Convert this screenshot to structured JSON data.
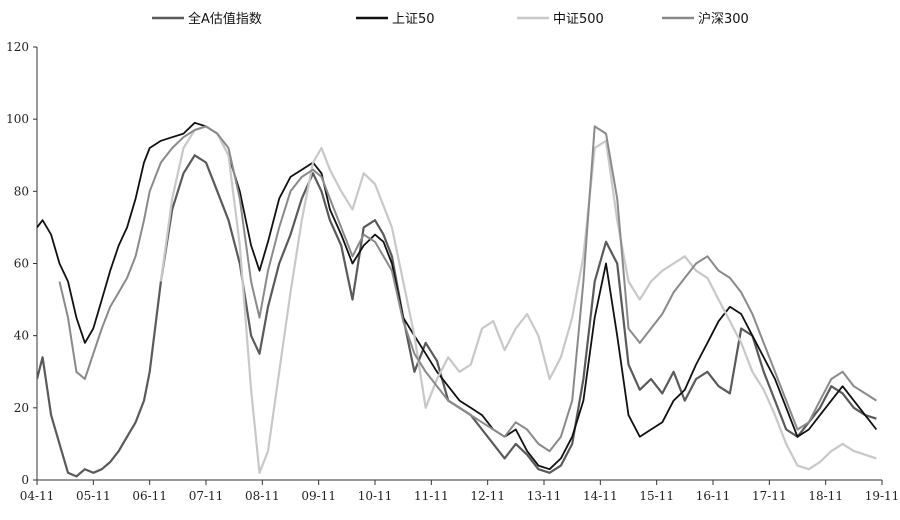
{
  "chart_data": {
    "type": "line",
    "title": "",
    "xlabel": "",
    "ylabel": "",
    "ylim": [
      0,
      120
    ],
    "yticks": [
      "0",
      "20",
      "40",
      "60",
      "80",
      "100",
      "120"
    ],
    "xticks": [
      "04-11",
      "05-11",
      "06-11",
      "07-11",
      "08-11",
      "09-11",
      "10-11",
      "11-11",
      "12-11",
      "13-11",
      "14-11",
      "15-11",
      "16-11",
      "17-11",
      "18-11",
      "19-11"
    ],
    "xlim": [
      0,
      15
    ],
    "grid": false,
    "legend_position": "top",
    "series": [
      {
        "name": "全A估值指数",
        "color": "#5a5a5a",
        "width": 2.2,
        "x": [
          0,
          0.1,
          0.25,
          0.4,
          0.55,
          0.7,
          0.85,
          1.0,
          1.15,
          1.3,
          1.45,
          1.6,
          1.75,
          1.9,
          2.0,
          2.2,
          2.4,
          2.6,
          2.8,
          3.0,
          3.2,
          3.4,
          3.6,
          3.8,
          3.95,
          4.1,
          4.3,
          4.5,
          4.7,
          4.9,
          5.05,
          5.2,
          5.4,
          5.6,
          5.8,
          6.0,
          6.15,
          6.3,
          6.5,
          6.7,
          6.9,
          7.1,
          7.3,
          7.5,
          7.7,
          7.9,
          8.1,
          8.3,
          8.5,
          8.7,
          8.9,
          9.1,
          9.3,
          9.5,
          9.7,
          9.9,
          10.1,
          10.3,
          10.5,
          10.7,
          10.9,
          11.1,
          11.3,
          11.5,
          11.7,
          11.9,
          12.1,
          12.3,
          12.5,
          12.7,
          12.9,
          13.1,
          13.3,
          13.5,
          13.7,
          13.9,
          14.1,
          14.3,
          14.5,
          14.7,
          14.9
        ],
        "y": [
          28,
          34,
          18,
          10,
          2,
          1,
          3,
          2,
          3,
          5,
          8,
          12,
          16,
          22,
          30,
          55,
          75,
          85,
          90,
          88,
          80,
          72,
          60,
          40,
          35,
          48,
          60,
          68,
          78,
          85,
          80,
          72,
          65,
          50,
          70,
          72,
          68,
          62,
          45,
          30,
          38,
          33,
          22,
          20,
          18,
          14,
          10,
          6,
          10,
          7,
          3,
          2,
          4,
          10,
          28,
          55,
          66,
          60,
          32,
          25,
          28,
          24,
          30,
          22,
          28,
          30,
          26,
          24,
          42,
          40,
          30,
          22,
          14,
          12,
          16,
          20,
          26,
          24,
          20,
          18,
          17
        ]
      },
      {
        "name": "上证50",
        "color": "#111111",
        "width": 1.8,
        "x": [
          0,
          0.1,
          0.25,
          0.4,
          0.55,
          0.7,
          0.85,
          1.0,
          1.15,
          1.3,
          1.45,
          1.6,
          1.75,
          1.9,
          2.0,
          2.2,
          2.4,
          2.6,
          2.8,
          3.0,
          3.2,
          3.4,
          3.6,
          3.8,
          3.95,
          4.1,
          4.3,
          4.5,
          4.7,
          4.9,
          5.05,
          5.2,
          5.4,
          5.6,
          5.8,
          6.0,
          6.15,
          6.3,
          6.5,
          6.7,
          6.9,
          7.1,
          7.3,
          7.5,
          7.7,
          7.9,
          8.1,
          8.3,
          8.5,
          8.7,
          8.9,
          9.1,
          9.3,
          9.5,
          9.7,
          9.9,
          10.1,
          10.3,
          10.5,
          10.7,
          10.9,
          11.1,
          11.3,
          11.5,
          11.7,
          11.9,
          12.1,
          12.3,
          12.5,
          12.7,
          12.9,
          13.1,
          13.3,
          13.5,
          13.7,
          13.9,
          14.1,
          14.3,
          14.5,
          14.7,
          14.9
        ],
        "y": [
          70,
          72,
          68,
          60,
          55,
          45,
          38,
          42,
          50,
          58,
          65,
          70,
          78,
          88,
          92,
          94,
          95,
          96,
          99,
          98,
          96,
          90,
          80,
          65,
          58,
          66,
          78,
          84,
          86,
          88,
          85,
          75,
          68,
          60,
          65,
          68,
          66,
          60,
          45,
          40,
          35,
          30,
          26,
          22,
          20,
          18,
          14,
          12,
          14,
          8,
          4,
          3,
          6,
          12,
          22,
          45,
          60,
          40,
          18,
          12,
          14,
          16,
          22,
          25,
          32,
          38,
          44,
          48,
          46,
          40,
          34,
          28,
          20,
          12,
          14,
          18,
          22,
          26,
          22,
          18,
          14
        ]
      },
      {
        "name": "中证500",
        "color": "#c8c8c8",
        "width": 2.2,
        "x": [
          0,
          0.1,
          0.25,
          0.4,
          0.55,
          0.7,
          0.85,
          1.0,
          1.15,
          1.3,
          1.45,
          1.6,
          1.75,
          1.9,
          2.0,
          2.2,
          2.4,
          2.6,
          2.8,
          3.0,
          3.2,
          3.4,
          3.6,
          3.8,
          3.95,
          4.1,
          4.3,
          4.5,
          4.7,
          4.9,
          5.05,
          5.2,
          5.4,
          5.6,
          5.8,
          6.0,
          6.15,
          6.3,
          6.5,
          6.7,
          6.9,
          7.1,
          7.3,
          7.5,
          7.7,
          7.9,
          8.1,
          8.3,
          8.5,
          8.7,
          8.9,
          9.1,
          9.3,
          9.5,
          9.7,
          9.9,
          10.1,
          10.3,
          10.5,
          10.7,
          10.9,
          11.1,
          11.3,
          11.5,
          11.7,
          11.9,
          12.1,
          12.3,
          12.5,
          12.7,
          12.9,
          13.1,
          13.3,
          13.5,
          13.7,
          13.9,
          14.1,
          14.3,
          14.5,
          14.7,
          14.9
        ],
        "y": [
          null,
          null,
          null,
          null,
          null,
          null,
          null,
          null,
          null,
          null,
          null,
          null,
          null,
          null,
          null,
          55,
          78,
          92,
          97,
          98,
          96,
          90,
          65,
          25,
          2,
          8,
          30,
          52,
          72,
          88,
          92,
          86,
          80,
          75,
          85,
          82,
          76,
          70,
          55,
          40,
          20,
          28,
          34,
          30,
          32,
          42,
          44,
          36,
          42,
          46,
          40,
          28,
          34,
          45,
          62,
          92,
          94,
          72,
          55,
          50,
          55,
          58,
          60,
          62,
          58,
          56,
          50,
          44,
          38,
          30,
          25,
          18,
          10,
          4,
          3,
          5,
          8,
          10,
          8,
          7,
          6
        ]
      },
      {
        "name": "沪深300",
        "color": "#8a8a8a",
        "width": 2.0,
        "x": [
          0,
          0.1,
          0.25,
          0.4,
          0.55,
          0.7,
          0.85,
          1.0,
          1.15,
          1.3,
          1.45,
          1.6,
          1.75,
          1.9,
          2.0,
          2.2,
          2.4,
          2.6,
          2.8,
          3.0,
          3.2,
          3.4,
          3.6,
          3.8,
          3.95,
          4.1,
          4.3,
          4.5,
          4.7,
          4.9,
          5.05,
          5.2,
          5.4,
          5.6,
          5.8,
          6.0,
          6.15,
          6.3,
          6.5,
          6.7,
          6.9,
          7.1,
          7.3,
          7.5,
          7.7,
          7.9,
          8.1,
          8.3,
          8.5,
          8.7,
          8.9,
          9.1,
          9.3,
          9.5,
          9.7,
          9.9,
          10.1,
          10.3,
          10.5,
          10.7,
          10.9,
          11.1,
          11.3,
          11.5,
          11.7,
          11.9,
          12.1,
          12.3,
          12.5,
          12.7,
          12.9,
          13.1,
          13.3,
          13.5,
          13.7,
          13.9,
          14.1,
          14.3,
          14.5,
          14.7,
          14.9
        ],
        "y": [
          null,
          null,
          null,
          55,
          45,
          30,
          28,
          35,
          42,
          48,
          52,
          56,
          62,
          72,
          80,
          88,
          92,
          95,
          97,
          98,
          96,
          92,
          78,
          55,
          45,
          58,
          70,
          80,
          84,
          86,
          84,
          78,
          70,
          62,
          68,
          66,
          62,
          58,
          44,
          35,
          30,
          26,
          22,
          20,
          18,
          16,
          14,
          12,
          16,
          14,
          10,
          8,
          12,
          22,
          55,
          98,
          96,
          78,
          42,
          38,
          42,
          46,
          52,
          56,
          60,
          62,
          58,
          56,
          52,
          46,
          38,
          30,
          22,
          14,
          16,
          22,
          28,
          30,
          26,
          24,
          22
        ]
      }
    ]
  }
}
